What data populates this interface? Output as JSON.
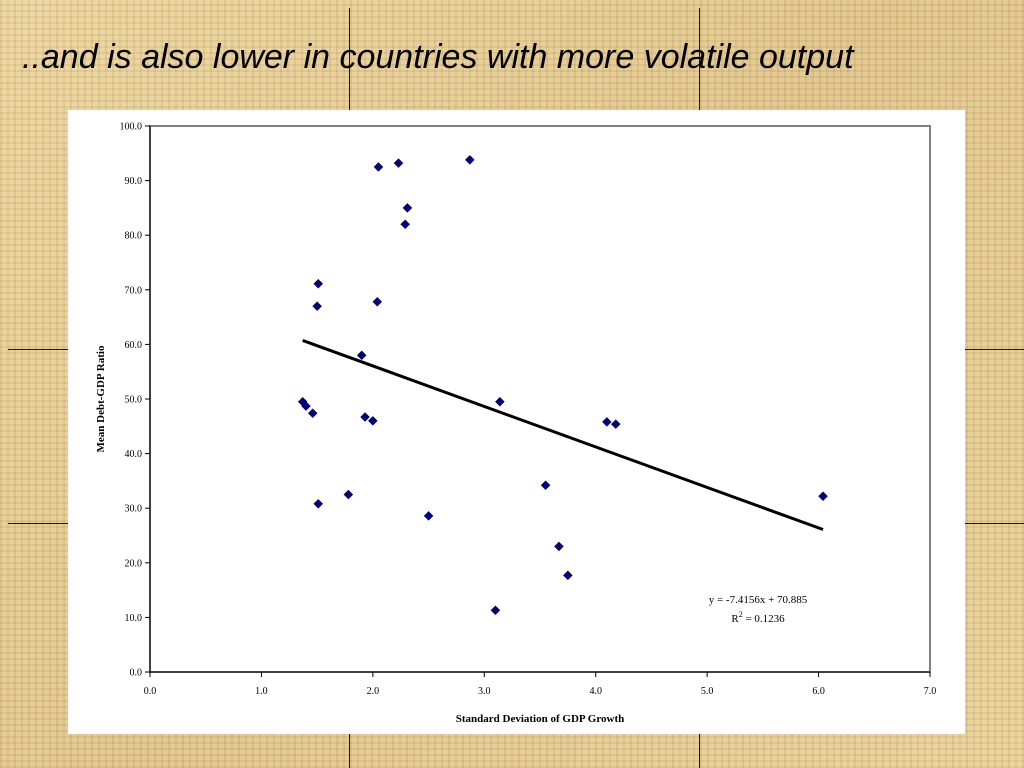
{
  "slide": {
    "title": "..and is also lower in countries with more volatile output"
  },
  "chart_data": {
    "type": "scatter",
    "title": "",
    "xlabel": "Standard Deviation of GDP Growth",
    "ylabel": "Mean Debt-GDP Ratio",
    "xlim": [
      0,
      7
    ],
    "ylim": [
      0,
      100
    ],
    "x_ticks": [
      "0.0",
      "1.0",
      "2.0",
      "3.0",
      "4.0",
      "5.0",
      "6.0",
      "7.0"
    ],
    "y_ticks": [
      "0.0",
      "10.0",
      "20.0",
      "30.0",
      "40.0",
      "50.0",
      "60.0",
      "70.0",
      "80.0",
      "90.0",
      "100.0"
    ],
    "grid": false,
    "legend": "none",
    "marker_color": "#000080",
    "points": [
      {
        "x": 2.05,
        "y": 92.5
      },
      {
        "x": 2.23,
        "y": 93.2
      },
      {
        "x": 2.87,
        "y": 93.8
      },
      {
        "x": 2.31,
        "y": 85.0
      },
      {
        "x": 2.29,
        "y": 82.0
      },
      {
        "x": 1.51,
        "y": 71.1
      },
      {
        "x": 1.5,
        "y": 67.0
      },
      {
        "x": 2.04,
        "y": 67.8
      },
      {
        "x": 1.9,
        "y": 58.0
      },
      {
        "x": 1.37,
        "y": 49.5
      },
      {
        "x": 1.4,
        "y": 48.7
      },
      {
        "x": 1.46,
        "y": 47.4
      },
      {
        "x": 1.93,
        "y": 46.7
      },
      {
        "x": 2.0,
        "y": 46.0
      },
      {
        "x": 3.14,
        "y": 49.5
      },
      {
        "x": 4.1,
        "y": 45.8
      },
      {
        "x": 4.18,
        "y": 45.4
      },
      {
        "x": 3.55,
        "y": 34.2
      },
      {
        "x": 1.78,
        "y": 32.5
      },
      {
        "x": 1.51,
        "y": 30.8
      },
      {
        "x": 2.5,
        "y": 28.6
      },
      {
        "x": 6.04,
        "y": 32.2
      },
      {
        "x": 3.67,
        "y": 23.0
      },
      {
        "x": 3.75,
        "y": 17.7
      },
      {
        "x": 3.1,
        "y": 11.3
      }
    ],
    "trendline": {
      "slope": -7.4156,
      "intercept": 70.885,
      "x_range": [
        1.37,
        6.04
      ],
      "equation_text": "y = -7.4156x + 70.885",
      "r2_label": "R",
      "r2_sup": "2",
      "r2_value": " = 0.1236"
    }
  }
}
